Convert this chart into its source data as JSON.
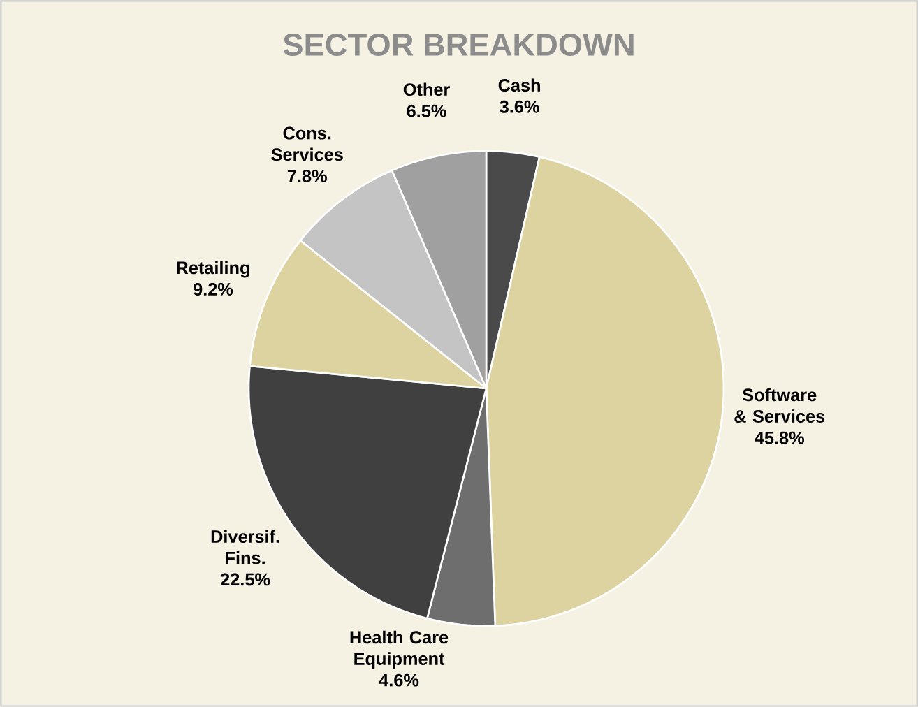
{
  "chart_data": {
    "type": "pie",
    "title": "SECTOR BREAKDOWN",
    "categories": [
      "Cash",
      "Software & Services",
      "Health Care Equipment",
      "Diversif. Fins.",
      "Retailing",
      "Cons. Services",
      "Other"
    ],
    "values": [
      3.6,
      45.8,
      4.6,
      22.5,
      9.2,
      7.8,
      6.5
    ],
    "colors": [
      "#4a4a4a",
      "#ddd3a0",
      "#6e6e6e",
      "#404040",
      "#ddd3a0",
      "#c4c4c4",
      "#a0a0a0"
    ],
    "value_labels": [
      "3.6%",
      "45.8%",
      "4.6%",
      "22.5%",
      "9.2%",
      "7.8%",
      "6.5%"
    ]
  }
}
